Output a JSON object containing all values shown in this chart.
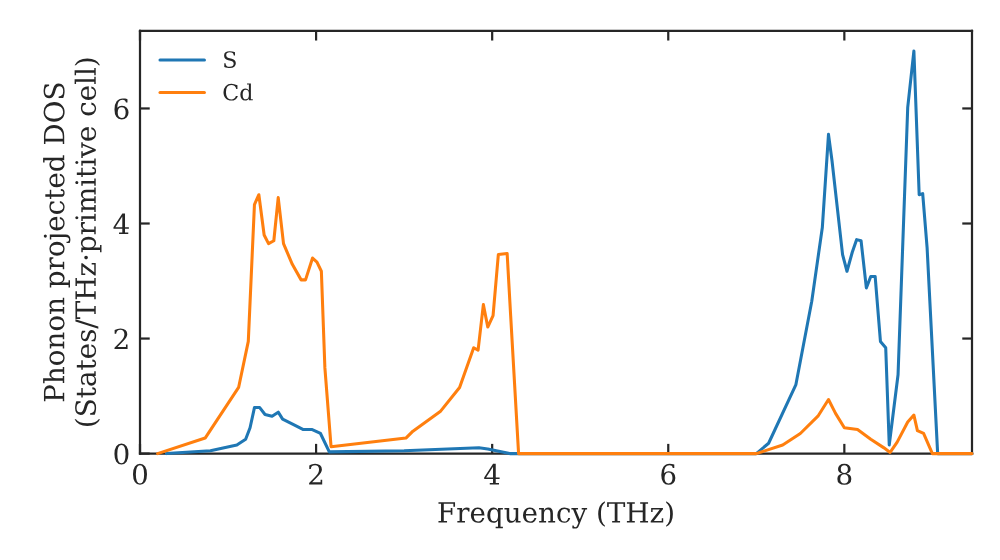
{
  "chart_data": {
    "type": "line",
    "xlabel": "Frequency (THz)",
    "ylabel": "Phonon projected DOS\n(States/THz·primitive cell)",
    "xlim": [
      0,
      9.45
    ],
    "ylim": [
      0,
      7.35
    ],
    "xticks": [
      0,
      2,
      4,
      6,
      8
    ],
    "yticks": [
      0,
      2,
      4,
      6
    ],
    "grid": false,
    "legend": "top left",
    "series": [
      {
        "name": "S",
        "color": "#1f77b4",
        "x": [
          0.3,
          0.8,
          1.1,
          1.2,
          1.25,
          1.3,
          1.36,
          1.42,
          1.5,
          1.57,
          1.62,
          1.75,
          1.85,
          1.95,
          2.05,
          2.15,
          3.0,
          3.85,
          3.95,
          4.2,
          7.0,
          7.14,
          7.45,
          7.63,
          7.75,
          7.82,
          7.86,
          7.98,
          8.03,
          8.09,
          8.14,
          8.19,
          8.25,
          8.3,
          8.35,
          8.41,
          8.47,
          8.51,
          8.61,
          8.72,
          8.79,
          8.85,
          8.89,
          8.94,
          9.06,
          9.45
        ],
        "values": [
          0,
          0.05,
          0.15,
          0.25,
          0.45,
          0.8,
          0.8,
          0.68,
          0.65,
          0.72,
          0.6,
          0.5,
          0.42,
          0.42,
          0.35,
          0.03,
          0.05,
          0.1,
          0.08,
          0,
          0,
          0.18,
          1.2,
          2.65,
          3.93,
          5.55,
          5.09,
          3.46,
          3.17,
          3.5,
          3.72,
          3.7,
          2.88,
          3.08,
          3.08,
          1.95,
          1.84,
          0.15,
          1.37,
          6.02,
          7.0,
          4.5,
          4.52,
          3.58,
          0,
          0
        ]
      },
      {
        "name": "Cd",
        "color": "#ff7f0e",
        "x": [
          0.2,
          0.74,
          1.12,
          1.23,
          1.3,
          1.35,
          1.41,
          1.46,
          1.52,
          1.57,
          1.63,
          1.73,
          1.83,
          1.88,
          1.96,
          2.01,
          2.06,
          2.1,
          2.17,
          3.02,
          3.1,
          3.41,
          3.63,
          3.79,
          3.84,
          3.9,
          3.95,
          4.01,
          4.07,
          4.17,
          4.21,
          4.3,
          7.0,
          7.3,
          7.5,
          7.7,
          7.82,
          7.9,
          8.0,
          8.15,
          8.3,
          8.45,
          8.52,
          8.6,
          8.72,
          8.79,
          8.83,
          8.9,
          9.0,
          9.45
        ],
        "values": [
          0,
          0.27,
          1.15,
          1.95,
          4.33,
          4.5,
          3.8,
          3.65,
          3.7,
          4.45,
          3.65,
          3.29,
          3.02,
          3.02,
          3.4,
          3.33,
          3.17,
          1.49,
          0.12,
          0.27,
          0.39,
          0.73,
          1.15,
          1.84,
          1.8,
          2.59,
          2.2,
          2.4,
          3.46,
          3.48,
          2.4,
          0,
          0,
          0.15,
          0.35,
          0.65,
          0.94,
          0.7,
          0.45,
          0.42,
          0.25,
          0.1,
          0.02,
          0.2,
          0.55,
          0.67,
          0.4,
          0.35,
          0,
          0
        ]
      }
    ]
  }
}
